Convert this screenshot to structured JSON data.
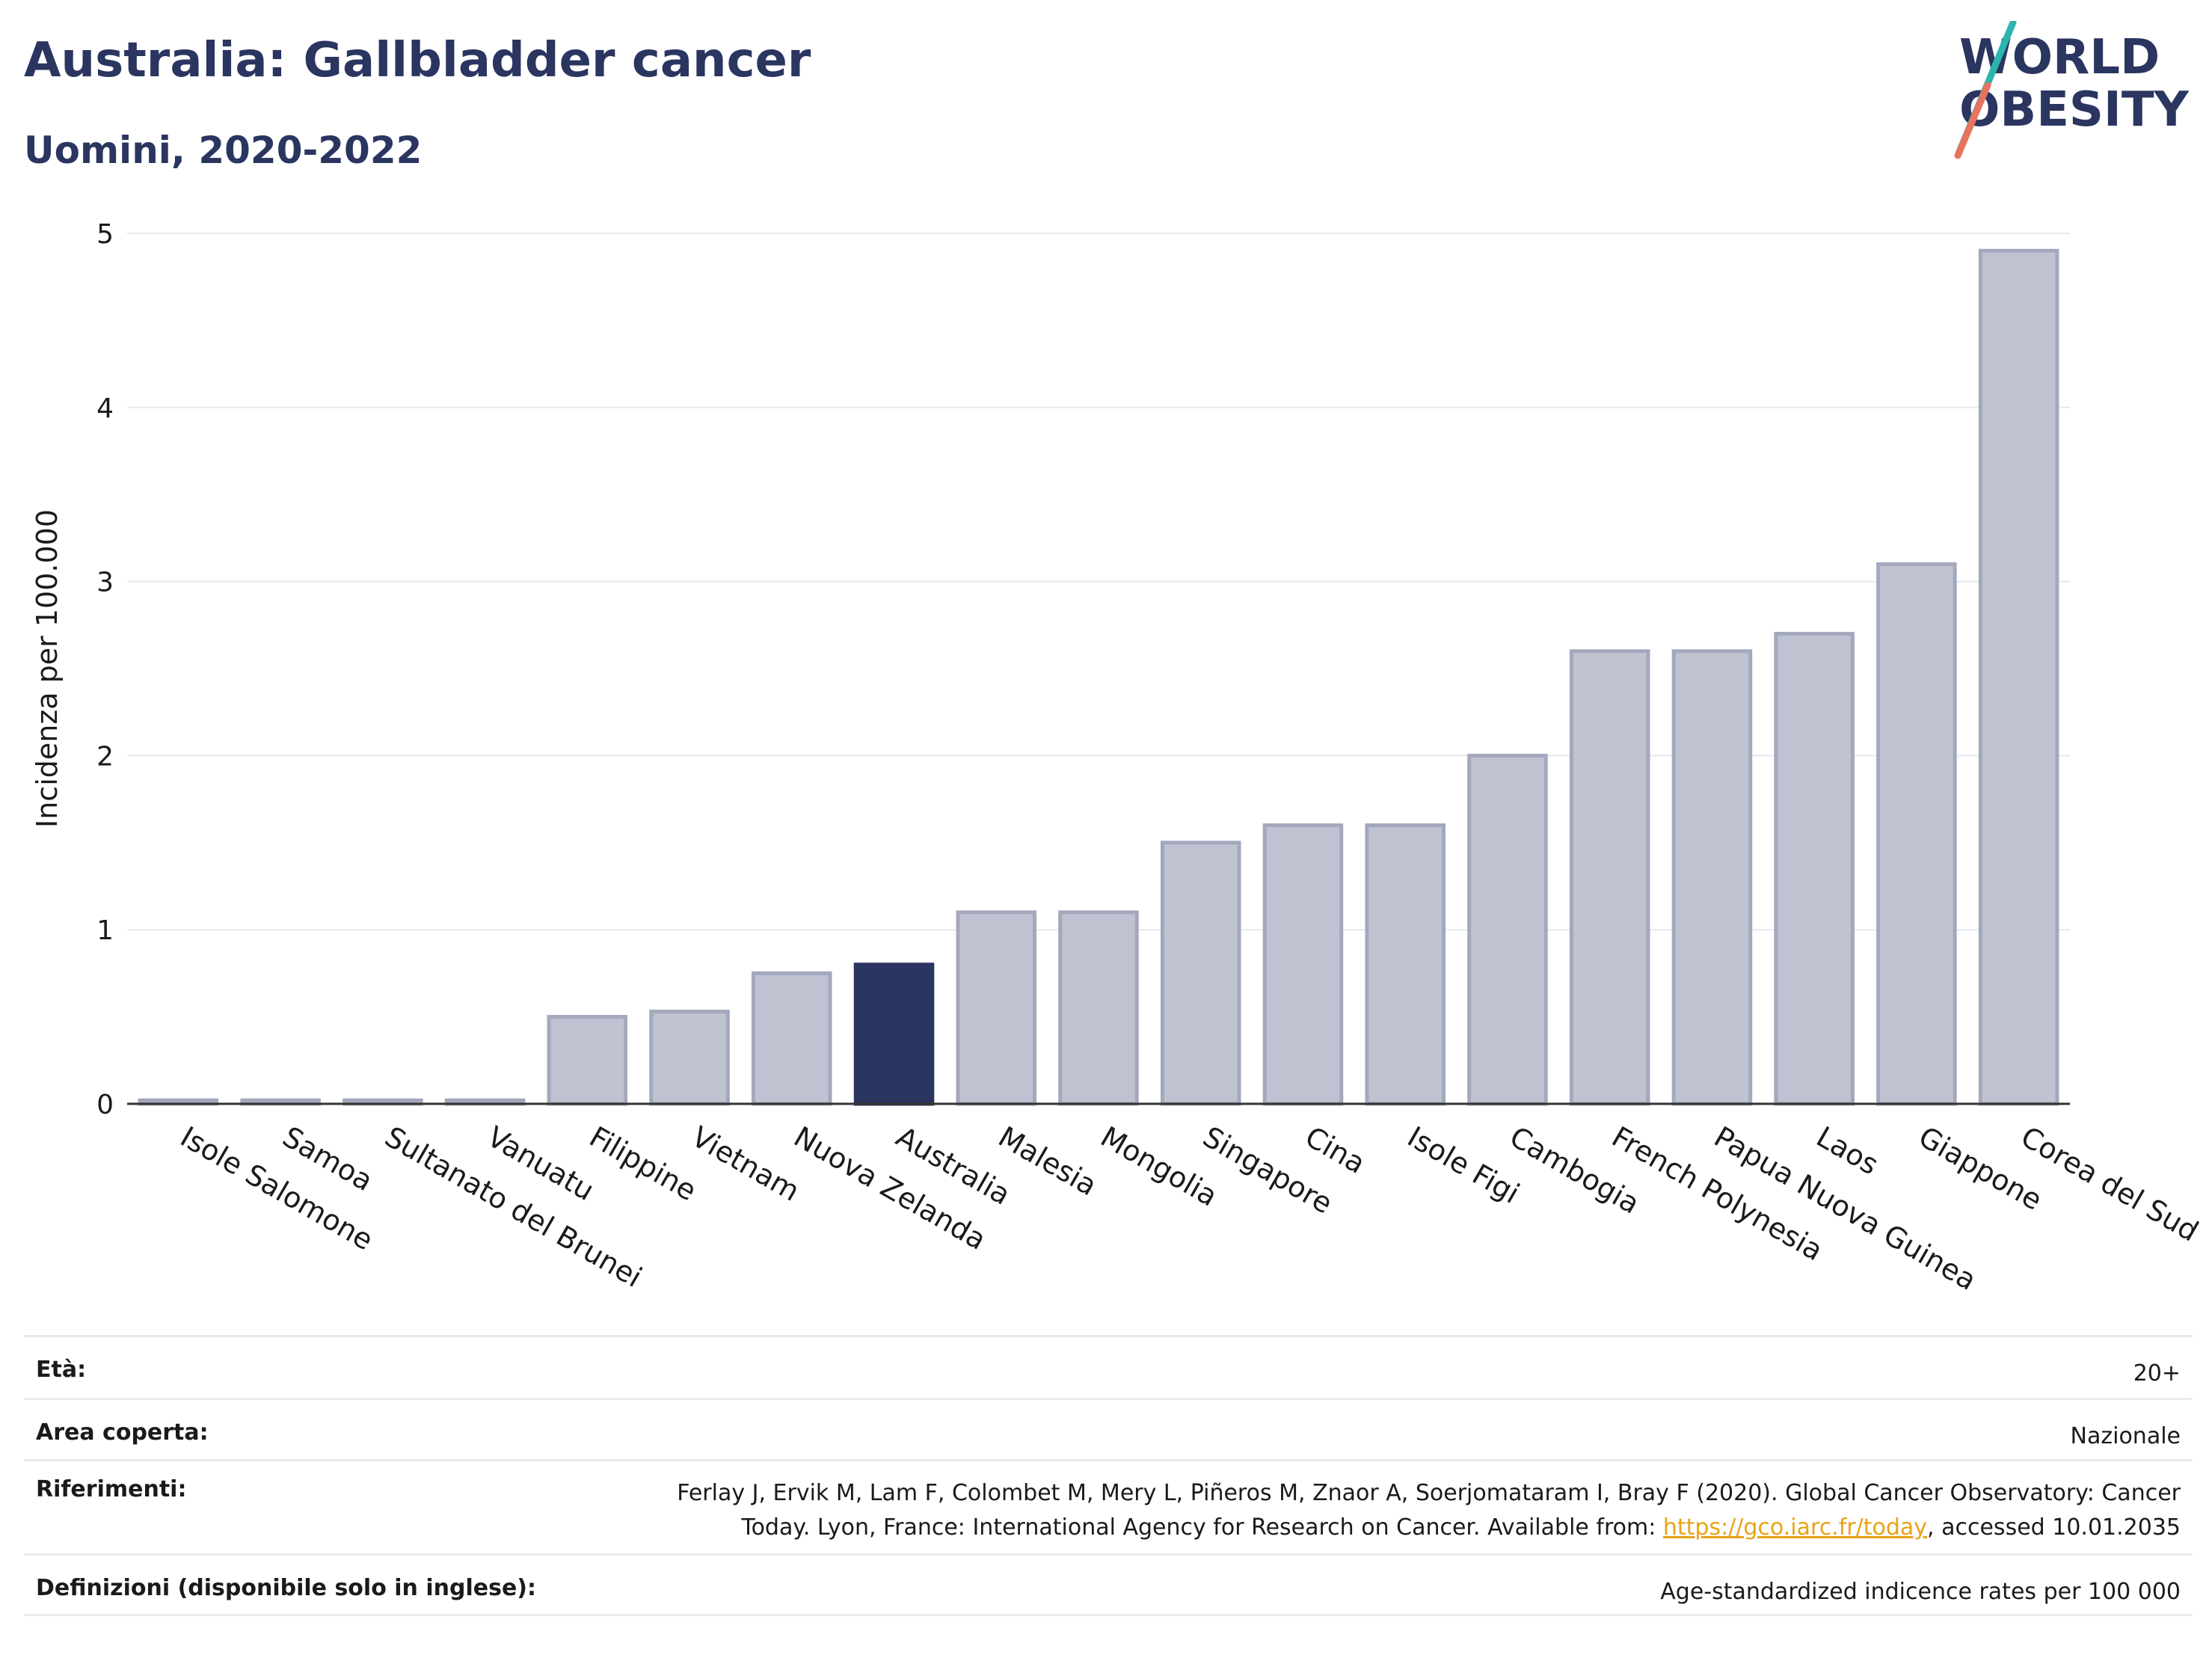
{
  "header": {
    "title": "Australia: Gallbladder cancer",
    "subtitle": "Uomini, 2020-2022",
    "logo_line1": "WORLD",
    "logo_line2": "OBESITY"
  },
  "colors": {
    "highlight": "#2a3560",
    "bar_fill": "#bfc3d1",
    "bar_stroke": "#a3a8bd",
    "grid": "#e6e8ee",
    "logo_teal": "#2bb5ad",
    "logo_coral": "#e8735f",
    "link": "#e8a317"
  },
  "chart_data": {
    "type": "bar",
    "ylabel": "Incidenza per 100.000",
    "xlabel": "",
    "ylim": [
      0,
      5
    ],
    "yticks": [
      0,
      1,
      2,
      3,
      4,
      5
    ],
    "highlight": "Australia",
    "categories": [
      "Isole Salomone",
      "Samoa",
      "Sultanato del Brunei",
      "Vanuatu",
      "Filippine",
      "Vietnam",
      "Nuova Zelanda",
      "Australia",
      "Malesia",
      "Mongolia",
      "Singapore",
      "Cina",
      "Isole Figi",
      "Cambogia",
      "French Polynesia",
      "Papua Nuova Guinea",
      "Laos",
      "Giappone",
      "Corea del Sud"
    ],
    "values": [
      0.02,
      0.02,
      0.02,
      0.02,
      0.5,
      0.53,
      0.75,
      0.8,
      1.1,
      1.1,
      1.5,
      1.6,
      1.6,
      2.0,
      2.6,
      2.6,
      2.7,
      3.1,
      4.9
    ],
    "grid": true
  },
  "info": {
    "eta_label": "Età:",
    "eta_value": "20+",
    "area_label": "Area coperta:",
    "area_value": "Nazionale",
    "ref_label": "Riferimenti:",
    "ref_line1": "Ferlay J, Ervik M, Lam F, Colombet M, Mery L, Piñeros M, Znaor A, Soerjomataram I, Bray F (2020). Global Cancer Observatory: Cancer",
    "ref_line2_pre": "Today. Lyon, France: International Agency for Research on Cancer. Available from: ",
    "ref_link": "https://gco.iarc.fr/today",
    "ref_line2_post": ", accessed 10.01.2035",
    "def_label": "Definizioni (disponibile solo in inglese):",
    "def_value": "Age-standardized indicence rates per 100 000"
  }
}
